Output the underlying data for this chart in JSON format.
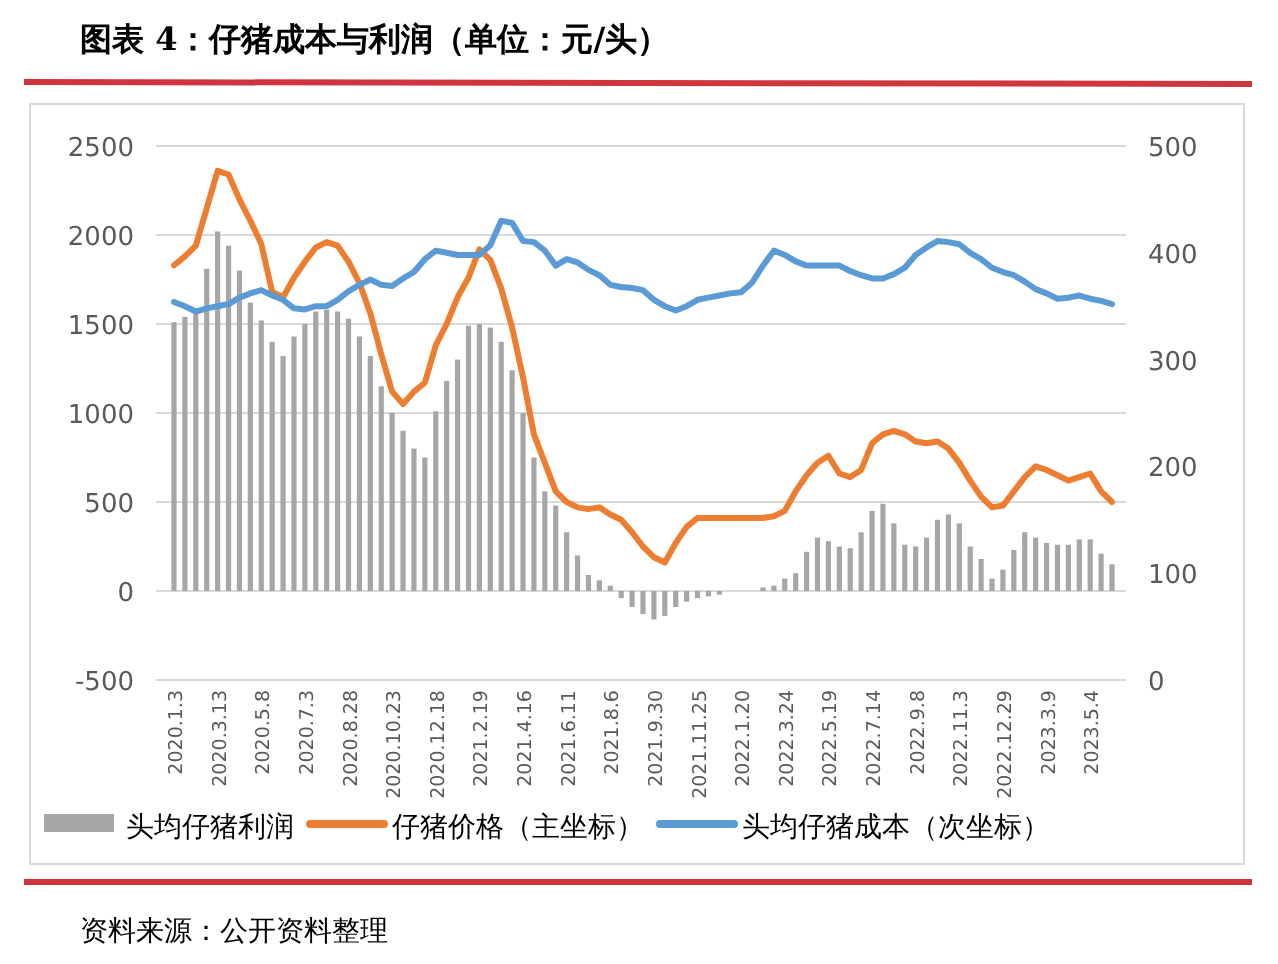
{
  "chart_data": {
    "type": "bar",
    "title": "图表 4：仔猪成本与利润（单位：元/头）",
    "annotations": [
      "资料来源：公开资料整理"
    ],
    "categories": [
      "2020.1.3",
      null,
      null,
      null,
      "2020.3.13",
      null,
      null,
      null,
      "2020.5.8",
      null,
      null,
      null,
      "2020.7.3",
      null,
      null,
      null,
      "2020.8.28",
      null,
      null,
      null,
      "2020.10.23",
      null,
      null,
      null,
      "2020.12.18",
      null,
      null,
      null,
      "2021.2.19",
      null,
      null,
      null,
      "2021.4.16",
      null,
      null,
      null,
      "2021.6.11",
      null,
      null,
      null,
      "2021.8.6",
      null,
      null,
      null,
      "2021.9.30",
      null,
      null,
      null,
      "2021.11.25",
      null,
      null,
      null,
      "2022.1.20",
      null,
      null,
      null,
      "2022.3.24",
      null,
      null,
      null,
      "2022.5.19",
      null,
      null,
      null,
      "2022.7.14",
      null,
      null,
      null,
      "2022.9.8",
      null,
      null,
      null,
      "2022.11.3",
      null,
      null,
      null,
      "2022.12.29",
      null,
      null,
      null,
      "2023.3.9",
      null,
      null,
      null,
      "2023.5.4",
      null,
      null
    ],
    "series": [
      {
        "name": "头均仔猪利润",
        "color": "#a6a6a6",
        "values": [
          1510,
          1540,
          1580,
          1810,
          2020,
          1940,
          1800,
          1620,
          1520,
          1400,
          1320,
          1430,
          1500,
          1570,
          1580,
          1570,
          1530,
          1430,
          1320,
          1150,
          1000,
          900,
          800,
          750,
          1010,
          1180,
          1300,
          1490,
          1500,
          1480,
          1400,
          1240,
          1000,
          750,
          560,
          480,
          330,
          200,
          90,
          60,
          30,
          -40,
          -90,
          -130,
          -160,
          -140,
          -90,
          -60,
          -40,
          -30,
          -20,
          null,
          null,
          null,
          20,
          30,
          70,
          100,
          220,
          300,
          280,
          250,
          240,
          330,
          450,
          490,
          380,
          260,
          250,
          300,
          400,
          430,
          380,
          250,
          180,
          70,
          120,
          230,
          330,
          300,
          270,
          260,
          260,
          290,
          290,
          210,
          150
        ]
      },
      {
        "name": "仔猪价格（主坐标）",
        "type": "line",
        "color": "#ed7d31",
        "values": [
          1830,
          1880,
          1940,
          2150,
          2360,
          2340,
          2200,
          2080,
          1950,
          1680,
          1650,
          1760,
          1850,
          1930,
          1960,
          1940,
          1850,
          1730,
          1560,
          1330,
          1120,
          1050,
          1120,
          1170,
          1380,
          1500,
          1650,
          1760,
          1920,
          1860,
          1700,
          1480,
          1200,
          880,
          720,
          560,
          500,
          470,
          460,
          470,
          430,
          400,
          330,
          250,
          190,
          160,
          270,
          360,
          410,
          410,
          410,
          410,
          410,
          410,
          410,
          420,
          450,
          560,
          650,
          720,
          760,
          660,
          640,
          680,
          830,
          880,
          900,
          880,
          840,
          830,
          840,
          800,
          720,
          620,
          530,
          470,
          480,
          560,
          640,
          700,
          680,
          650,
          620,
          640,
          660,
          560,
          500
        ]
      },
      {
        "name": "头均仔猪成本（次坐标）",
        "type": "line",
        "axis": "y2",
        "color": "#5b9bd5",
        "values": [
          354,
          350,
          345,
          348,
          350,
          352,
          358,
          362,
          365,
          360,
          356,
          348,
          347,
          350,
          350,
          356,
          364,
          370,
          375,
          370,
          369,
          376,
          382,
          394,
          402,
          400,
          398,
          398,
          398,
          407,
          430,
          428,
          411,
          410,
          402,
          388,
          394,
          391,
          384,
          379,
          370,
          368,
          367,
          365,
          356,
          350,
          346,
          350,
          356,
          358,
          360,
          362,
          363,
          372,
          388,
          402,
          398,
          392,
          388,
          388,
          388,
          388,
          383,
          379,
          376,
          376,
          380,
          386,
          398,
          405,
          411,
          410,
          408,
          400,
          394,
          386,
          382,
          379,
          373,
          366,
          362,
          357,
          358,
          360,
          357,
          355,
          352
        ]
      }
    ],
    "ylim": [
      -500,
      2500
    ],
    "yticks": [
      -500,
      0,
      500,
      1000,
      1500,
      2000,
      2500
    ],
    "y2lim": [
      0,
      500
    ],
    "y2ticks": [
      0,
      100,
      200,
      300,
      400,
      500
    ],
    "grid": "y",
    "legend": "bottom"
  }
}
